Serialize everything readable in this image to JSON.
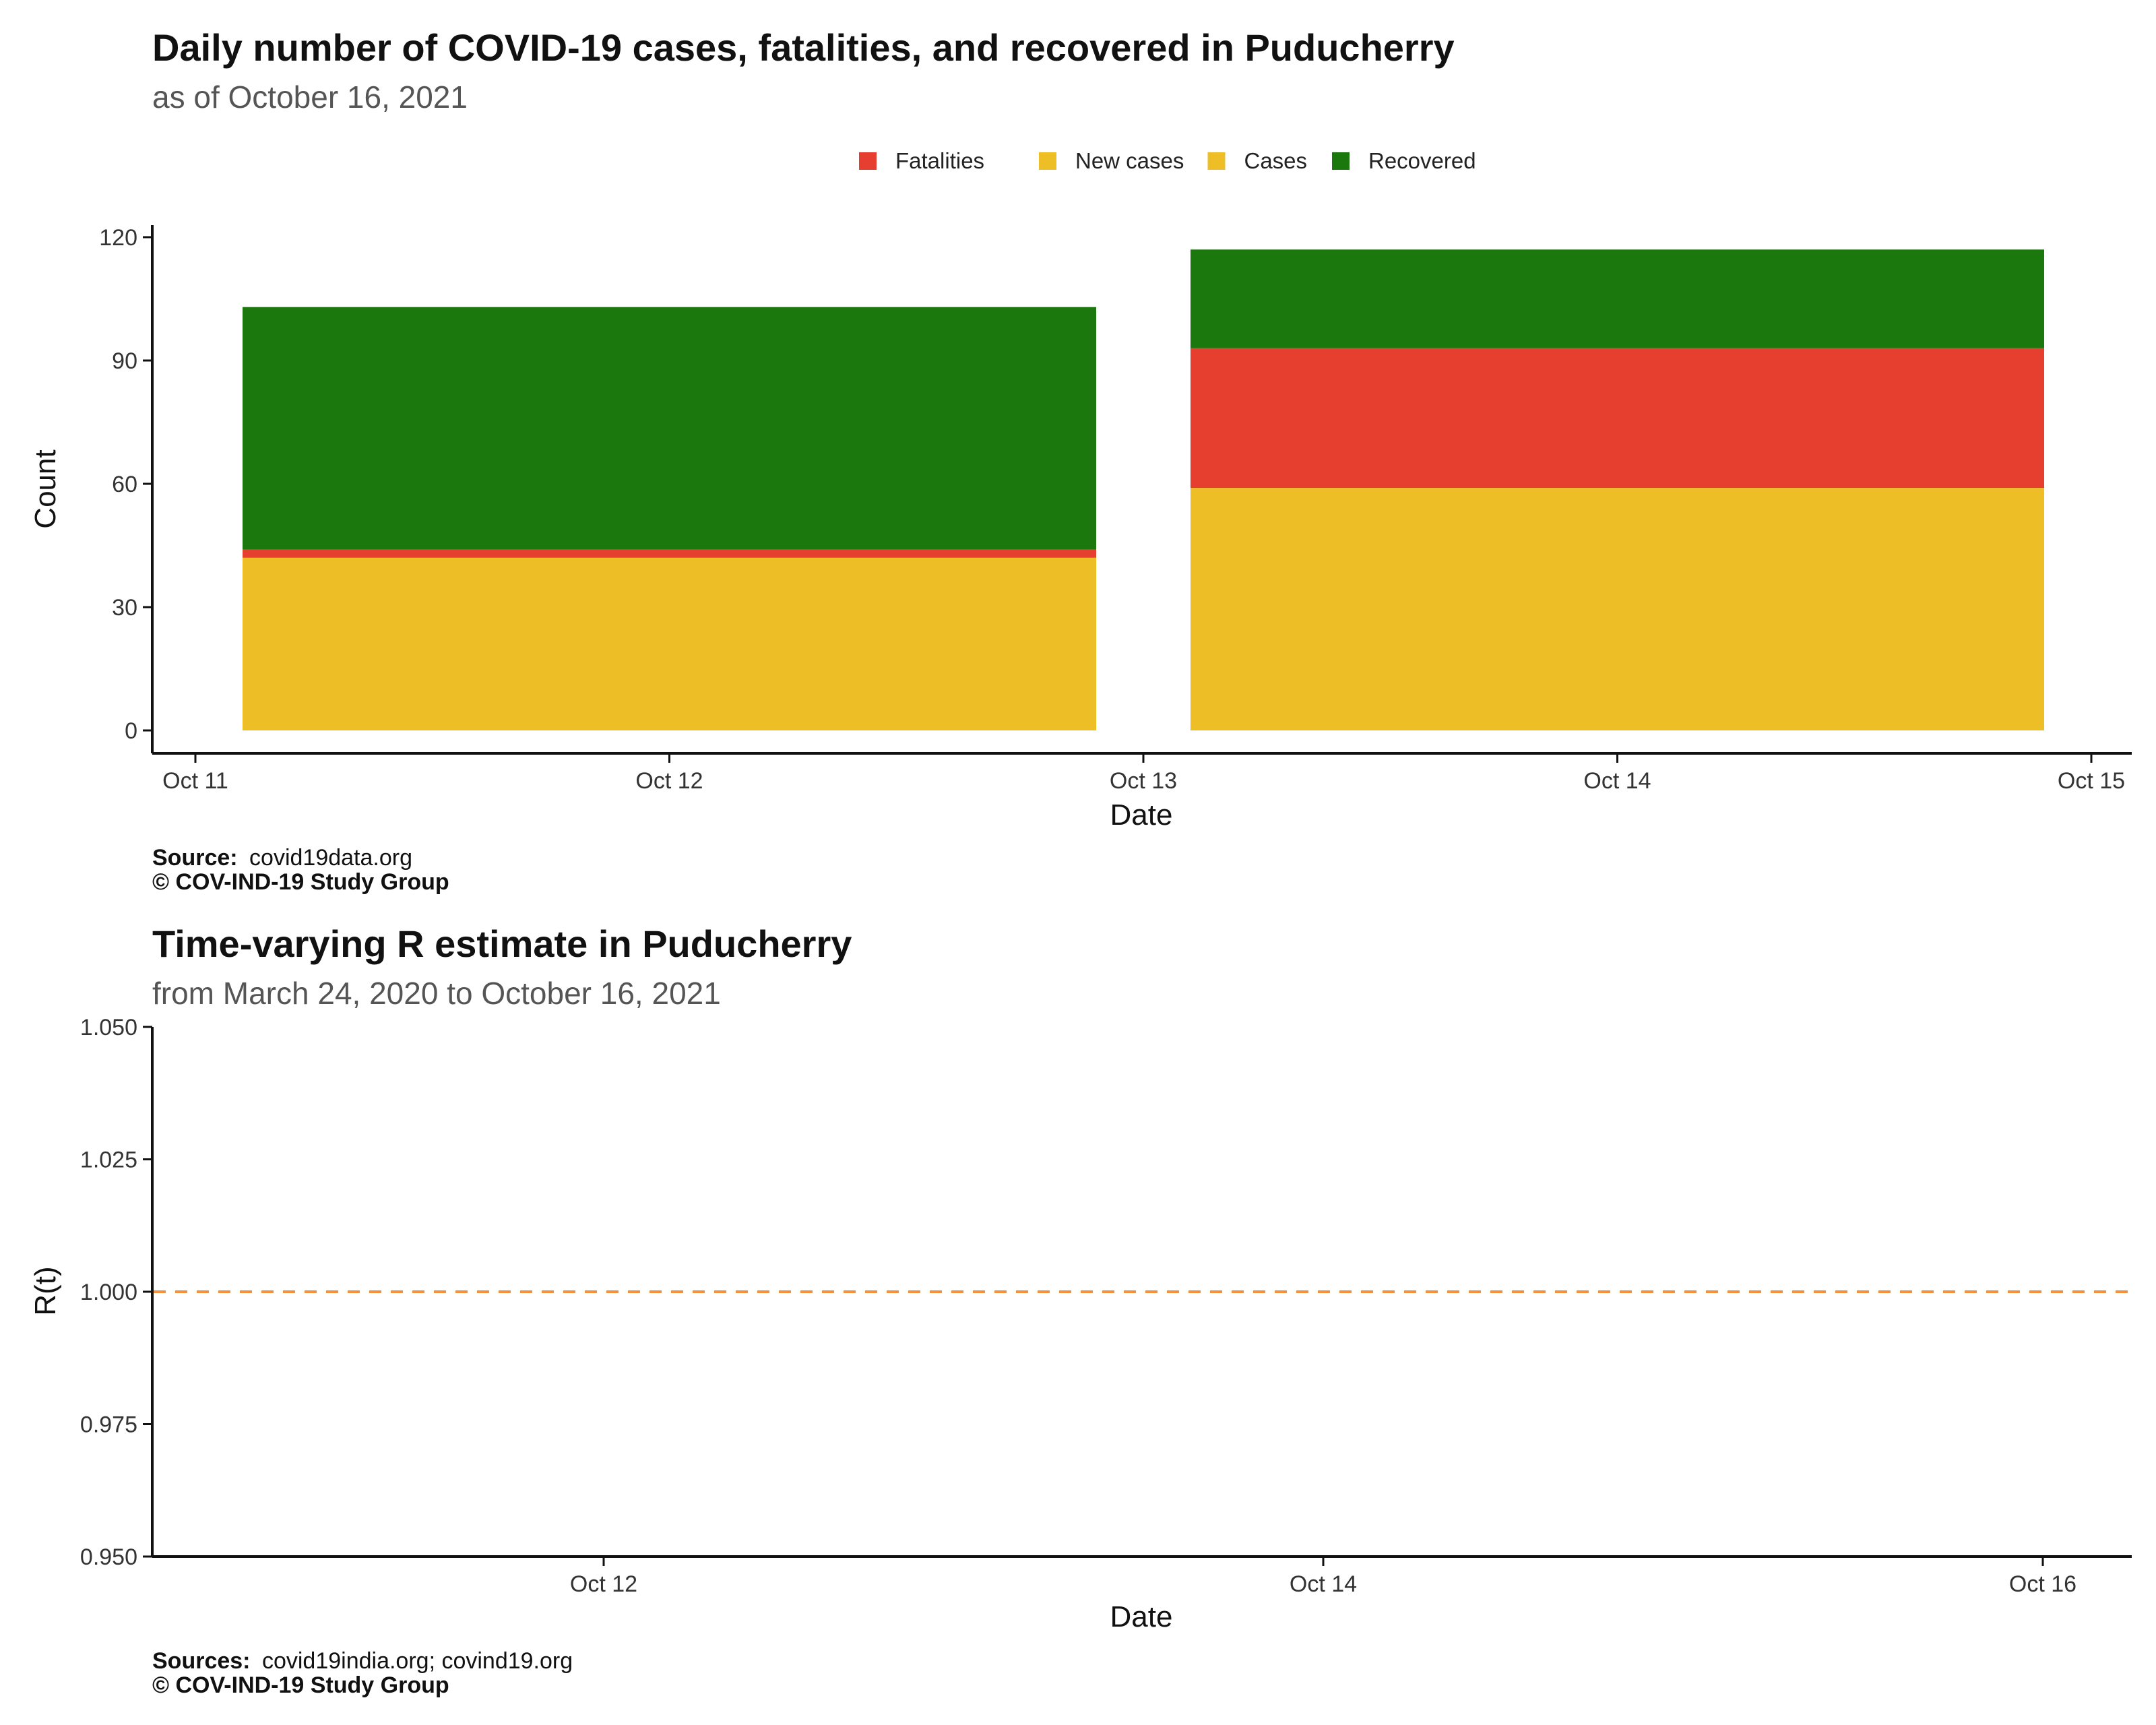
{
  "chart_data": [
    {
      "type": "bar",
      "stacked": true,
      "title": "Daily number of COVID-19 cases, fatalities, and recovered in Puducherry",
      "subtitle": "as of October 16, 2021",
      "xlabel": "Date",
      "ylabel": "Count",
      "legend_position": "top-right",
      "legend": [
        {
          "name": "Fatalities",
          "color": "#e63f2f"
        },
        {
          "name": "New cases",
          "color": "#eebe27"
        },
        {
          "name": "Cases",
          "color": "#eebe27"
        },
        {
          "name": "Recovered",
          "color": "#1a780c"
        }
      ],
      "x_ticks": [
        "Oct 11",
        "Oct 12",
        "Oct 13",
        "Oct 14",
        "Oct 15"
      ],
      "x_tick_dates": [
        "2021-10-11",
        "2021-10-12",
        "2021-10-13",
        "2021-10-14",
        "2021-10-15"
      ],
      "y_ticks": [
        "0",
        "30",
        "60",
        "90",
        "120"
      ],
      "ylim": [
        0,
        120
      ],
      "bars": [
        {
          "start": "2021-10-11",
          "end": "2021-10-13",
          "segments": [
            {
              "series": "Cases",
              "value": 42,
              "color": "#eebe27"
            },
            {
              "series": "Fatalities",
              "value": 2,
              "color": "#e63f2f"
            },
            {
              "series": "Recovered",
              "value": 59,
              "color": "#1a780c"
            }
          ]
        },
        {
          "start": "2021-10-13",
          "end": "2021-10-15",
          "segments": [
            {
              "series": "Cases",
              "value": 59,
              "color": "#eebe27"
            },
            {
              "series": "Fatalities",
              "value": 34,
              "color": "#e63f2f"
            },
            {
              "series": "Recovered",
              "value": 24,
              "color": "#1a780c"
            }
          ]
        }
      ],
      "caption": {
        "source_label": "Source:",
        "source_text": "covid19data.org",
        "copyright": "© COV-IND-19 Study Group"
      }
    },
    {
      "type": "line",
      "title": "Time-varying R estimate in Puducherry",
      "subtitle": "from March 24, 2020 to October 16, 2021",
      "xlabel": "Date",
      "ylabel": "R(t)",
      "x_ticks": [
        "Oct 12",
        "Oct 14",
        "Oct 16"
      ],
      "x_tick_dates": [
        "2021-10-12",
        "2021-10-14",
        "2021-10-16"
      ],
      "xlim": [
        "2021-10-11",
        "2021-10-16"
      ],
      "y_ticks": [
        "0.950",
        "0.975",
        "1.000",
        "1.025",
        "1.050"
      ],
      "ylim": [
        0.95,
        1.05
      ],
      "reference_line": {
        "y": 1.0,
        "style": "dashed",
        "color": "#f5913a"
      },
      "series": [],
      "caption": {
        "source_label": "Sources:",
        "source_text": "covid19india.org; covind19.org",
        "copyright": "© COV-IND-19 Study Group"
      }
    }
  ]
}
